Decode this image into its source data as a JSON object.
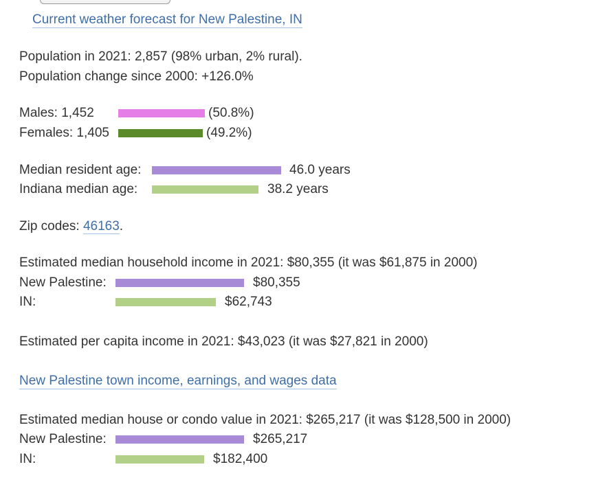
{
  "forecast_link": "Current weather forecast for New Palestine, IN",
  "population": {
    "line1": "Population in 2021: 2,857 (98% urban, 2% rural).",
    "line2": "Population change since 2000: +126.0%"
  },
  "gender": {
    "males_label": "Males: 1,452",
    "males_pct": "(50.8%)",
    "males_value": 50.8,
    "females_label": "Females: 1,405",
    "females_pct": "(49.2%)",
    "females_value": 49.2
  },
  "age": {
    "resident_label": "Median resident age:",
    "resident_value_text": "46.0 years",
    "resident_value": 46.0,
    "state_label": "Indiana median age:",
    "state_value_text": "38.2 years",
    "state_value": 38.2
  },
  "zip": {
    "prefix": "Zip codes:",
    "code": "46163",
    "suffix": "."
  },
  "household_income": {
    "headline": "Estimated median household income in 2021: $80,355 (it was $61,875 in 2000)",
    "place_label": "New Palestine:",
    "place_value_text": "$80,355",
    "place_value": 80355,
    "state_label": "IN:",
    "state_value_text": "$62,743",
    "state_value": 62743
  },
  "per_capita": {
    "headline": "Estimated per capita income in 2021: $43,023 (it was $27,821 in 2000)"
  },
  "wages_link": "New Palestine town income, earnings, and wages data",
  "house_value": {
    "headline": "Estimated median house or condo value in 2021: $265,217 (it was $128,500 in 2000)",
    "place_label": "New Palestine:",
    "place_value_text": "$265,217",
    "place_value": 265217,
    "state_label": "IN:",
    "state_value_text": "$182,400",
    "state_value": 182400
  },
  "colors": {
    "link": "#3f6ea8",
    "males_bar": "#e57ee6",
    "females_bar": "#5b8a2b",
    "place_bar": "#a88bd6",
    "state_bar": "#b3d089"
  }
}
